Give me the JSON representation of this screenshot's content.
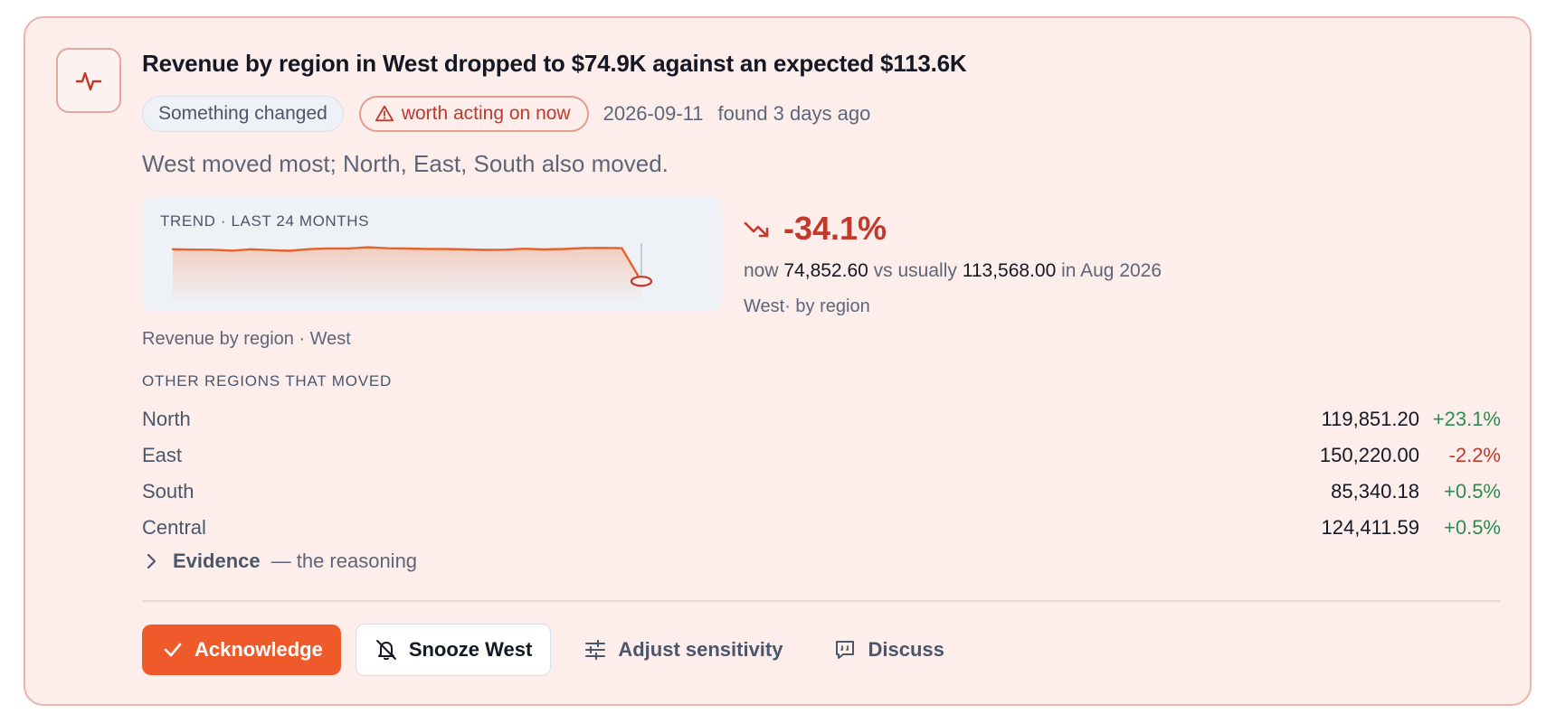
{
  "alert": {
    "icon": "activity-icon",
    "title": "Revenue by region in West dropped to $74.9K against an expected $113.6K",
    "tag_label": "Something changed",
    "severity_label": "worth acting on now",
    "date": "2026-09-11",
    "found": "found 3 days ago",
    "summary": "West moved most; North, East, South also moved."
  },
  "trend": {
    "label": "TREND · LAST 24 MONTHS",
    "caption": "Revenue by region · West",
    "color": "#e8602c"
  },
  "chart_data": {
    "type": "line",
    "series": [
      {
        "values": [
          112,
          111.6,
          111.5,
          110.3,
          112,
          111,
          110.2,
          112.2,
          113,
          113,
          114.3,
          113.2,
          112.8,
          112.4,
          112.3,
          111.8,
          111.3,
          111.5,
          112.6,
          111.8,
          112.3,
          113.4,
          113.6,
          113.3,
          74.85
        ]
      }
    ]
  },
  "delta": {
    "value": "-34.1%",
    "now_label": "now",
    "now_value": "74,852.60",
    "vs_label": "vs usually",
    "usual_value": "113,568.00",
    "period": "in Aug 2026",
    "region_line": "West· by region"
  },
  "others": {
    "heading": "OTHER REGIONS THAT MOVED",
    "rows": [
      {
        "name": "North",
        "value": "119,851.20",
        "pct": "+23.1%",
        "dir": "pos"
      },
      {
        "name": "East",
        "value": "150,220.00",
        "pct": "-2.2%",
        "dir": "neg"
      },
      {
        "name": "South",
        "value": "85,340.18",
        "pct": "+0.5%",
        "dir": "pos"
      },
      {
        "name": "Central",
        "value": "124,411.59",
        "pct": "+0.5%",
        "dir": "pos"
      }
    ]
  },
  "evidence": {
    "label": "Evidence",
    "sub": "— the reasoning"
  },
  "actions": {
    "acknowledge": "Acknowledge",
    "snooze": "Snooze West",
    "adjust": "Adjust sensitivity",
    "discuss": "Discuss"
  },
  "colors": {
    "accent": "#ee5a2a",
    "negative": "#c0392b",
    "positive": "#2f8a4f"
  }
}
